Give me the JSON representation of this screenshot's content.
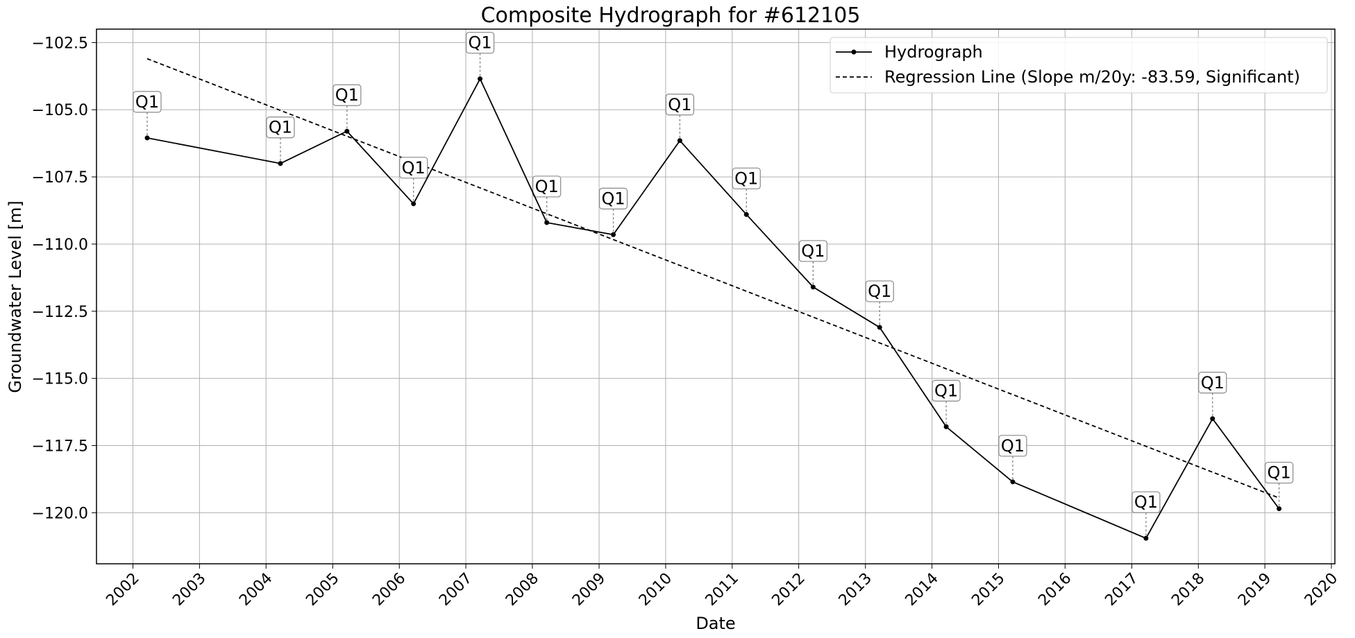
{
  "chart_data": {
    "type": "line",
    "title": "Composite Hydrograph for  #612105",
    "xlabel": "Date",
    "ylabel": "Groundwater Level [m]",
    "xlim": [
      "2001-06-15",
      "2020-01-20"
    ],
    "ylim": [
      -121.9,
      -102.0
    ],
    "grid": true,
    "legend_position": "top-right",
    "x_ticks": [
      "2002",
      "2003",
      "2004",
      "2005",
      "2006",
      "2007",
      "2008",
      "2009",
      "2010",
      "2011",
      "2012",
      "2013",
      "2014",
      "2015",
      "2016",
      "2017",
      "2018",
      "2019",
      "2020"
    ],
    "y_ticks": [
      -102.5,
      -105.0,
      -107.5,
      -110.0,
      -112.5,
      -115.0,
      -117.5,
      -120.0
    ],
    "y_tick_labels": [
      "−102.5",
      "−105.0",
      "−107.5",
      "−110.0",
      "−112.5",
      "−115.0",
      "−117.5",
      "−120.0"
    ],
    "series": [
      {
        "name": "Hydrograph",
        "style": "solid-with-points",
        "color": "#000000",
        "x": [
          "2002-03-20",
          "2004-03-20",
          "2005-03-20",
          "2006-03-20",
          "2007-03-20",
          "2008-03-20",
          "2009-03-20",
          "2010-03-20",
          "2011-03-20",
          "2012-03-20",
          "2013-03-20",
          "2014-03-20",
          "2015-03-20",
          "2017-03-20",
          "2018-03-20",
          "2019-03-20"
        ],
        "y": [
          -106.05,
          -107.0,
          -105.8,
          -108.5,
          -103.85,
          -109.2,
          -109.65,
          -106.15,
          -108.9,
          -111.6,
          -113.1,
          -116.8,
          -118.85,
          -120.95,
          -116.5,
          -119.85
        ],
        "annotations": [
          "Q1",
          "Q1",
          "Q1",
          "Q1",
          "Q1",
          "Q1",
          "Q1",
          "Q1",
          "Q1",
          "Q1",
          "Q1",
          "Q1",
          "Q1",
          "Q1",
          "Q1",
          "Q1"
        ]
      },
      {
        "name": "Regression Line (Slope m/20y: -83.59, Significant)",
        "style": "dashed",
        "color": "#000000",
        "x": [
          "2002-03-20",
          "2019-03-20"
        ],
        "y": [
          -103.1,
          -119.45
        ]
      }
    ]
  }
}
